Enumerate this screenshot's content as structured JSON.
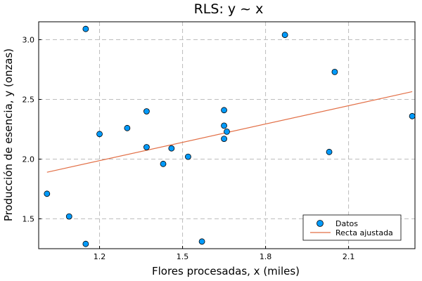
{
  "chart_data": {
    "type": "scatter",
    "title": "RLS: y ~ x",
    "xlabel": "Flores procesadas, x (miles)",
    "ylabel": "Producción de esencia, y (onzas)",
    "xlim": [
      0.98,
      2.34
    ],
    "ylim": [
      1.25,
      3.15
    ],
    "xticks": [
      1.2,
      1.5,
      1.8,
      2.1
    ],
    "xtick_labels": [
      "1.2",
      "1.5",
      "1.8",
      "2.1"
    ],
    "yticks": [
      1.5,
      2.0,
      2.5,
      3.0
    ],
    "ytick_labels": [
      "1.5",
      "2.0",
      "2.5",
      "3.0"
    ],
    "grid": true,
    "legend_position": "bottom-right",
    "series": [
      {
        "name": "Datos",
        "kind": "scatter",
        "color": "#009AFA",
        "points": [
          {
            "x": 1.01,
            "y": 1.71
          },
          {
            "x": 1.09,
            "y": 1.52
          },
          {
            "x": 1.15,
            "y": 1.29
          },
          {
            "x": 1.15,
            "y": 3.09
          },
          {
            "x": 1.2,
            "y": 2.21
          },
          {
            "x": 1.3,
            "y": 2.26
          },
          {
            "x": 1.37,
            "y": 2.4
          },
          {
            "x": 1.37,
            "y": 2.1
          },
          {
            "x": 1.43,
            "y": 1.96
          },
          {
            "x": 1.46,
            "y": 2.09
          },
          {
            "x": 1.52,
            "y": 2.02
          },
          {
            "x": 1.57,
            "y": 1.31
          },
          {
            "x": 1.65,
            "y": 2.41
          },
          {
            "x": 1.65,
            "y": 2.28
          },
          {
            "x": 1.65,
            "y": 2.17
          },
          {
            "x": 1.66,
            "y": 2.23
          },
          {
            "x": 1.87,
            "y": 3.04
          },
          {
            "x": 2.03,
            "y": 2.06
          },
          {
            "x": 2.05,
            "y": 2.73
          },
          {
            "x": 2.33,
            "y": 2.36
          }
        ]
      },
      {
        "name": "Recta ajustada",
        "kind": "line",
        "color": "#E26F46",
        "points": [
          {
            "x": 1.01,
            "y": 1.89
          },
          {
            "x": 2.33,
            "y": 2.565
          }
        ]
      }
    ]
  }
}
